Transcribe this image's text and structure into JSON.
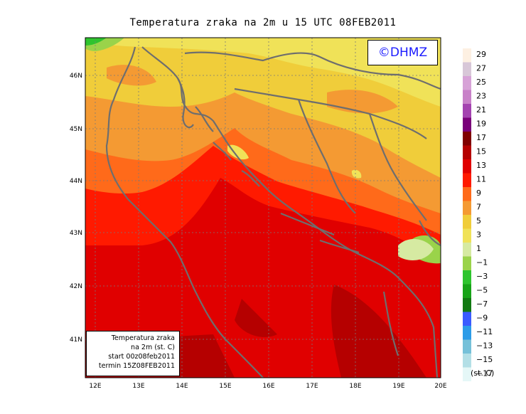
{
  "title": "Temperatura zraka na 2m u 15 UTC 08FEB2011",
  "logo_text": "©DHMZ",
  "info_box": {
    "line1": "Temperatura zraka",
    "line2": "na 2m (st. C)",
    "line3": "start 00z08feb2011",
    "line4": "termin 15Z08FEB2011"
  },
  "axes": {
    "lon_ticks": [
      "12E",
      "13E",
      "14E",
      "15E",
      "16E",
      "17E",
      "18E",
      "19E",
      "20E"
    ],
    "lat_ticks": [
      "46N",
      "45N",
      "44N",
      "43N",
      "42N",
      "41N"
    ],
    "lon_range": [
      11.7,
      20.0
    ],
    "lat_range": [
      40.3,
      46.8
    ]
  },
  "legend": {
    "unit": "(st. C)",
    "labels": [
      "29",
      "27",
      "25",
      "23",
      "21",
      "19",
      "17",
      "15",
      "13",
      "11",
      "9",
      "7",
      "5",
      "3",
      "1",
      "−1",
      "−3",
      "−5",
      "−7",
      "−9",
      "−11",
      "−13",
      "−15",
      "−17"
    ],
    "colors": [
      "#fdf0e2",
      "#d8c7d8",
      "#d7a2d7",
      "#c881c8",
      "#a443b0",
      "#7a007a",
      "#800000",
      "#b50000",
      "#e00000",
      "#ff1a00",
      "#ff6a1a",
      "#f49a33",
      "#f0cd3a",
      "#f0e258",
      "#d6eaa2",
      "#9ad34a",
      "#2ec42e",
      "#18a418",
      "#127a12",
      "#3a5cff",
      "#2c9ce8",
      "#76c1d9",
      "#b3dfe6",
      "#e5f7f7"
    ]
  },
  "colors": {
    "coastline": "#6e6e6e",
    "grid": "#7a7a7a"
  }
}
